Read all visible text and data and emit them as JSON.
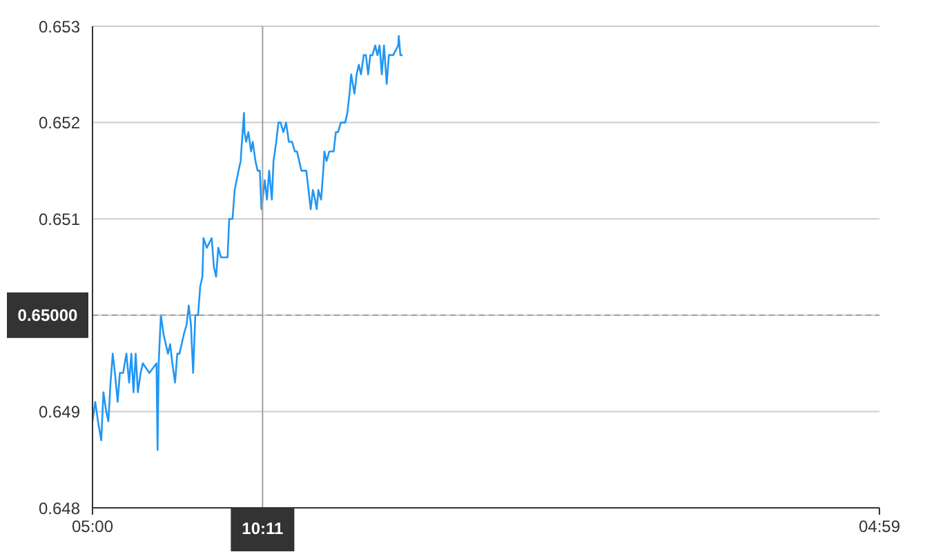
{
  "chart_data": {
    "type": "line",
    "x": [
      "2000-01-01T05:00",
      "2000-01-01T05:05",
      "2000-01-01T05:10",
      "2000-01-01T05:16",
      "2000-01-01T05:20",
      "2000-01-01T05:25",
      "2000-01-01T05:29",
      "2000-01-01T05:33",
      "2000-01-01T05:37",
      "2000-01-01T05:41",
      "2000-01-01T05:46",
      "2000-01-01T05:50",
      "2000-01-01T05:56",
      "2000-01-01T06:02",
      "2000-01-01T06:07",
      "2000-01-01T06:11",
      "2000-01-01T06:15",
      "2000-01-01T06:19",
      "2000-01-01T06:23",
      "2000-01-01T06:28",
      "2000-01-01T06:32",
      "2000-01-01T06:44",
      "2000-01-01T06:57",
      "2000-01-01T06:59",
      "2000-01-01T07:01",
      "2000-01-01T07:05",
      "2000-01-01T07:10",
      "2000-01-01T07:14",
      "2000-01-01T07:18",
      "2000-01-01T07:22",
      "2000-01-01T07:26",
      "2000-01-01T07:31",
      "2000-01-01T07:35",
      "2000-01-01T07:39",
      "2000-01-01T07:43",
      "2000-01-01T07:47",
      "2000-01-01T07:52",
      "2000-01-01T07:56",
      "2000-01-01T08:00",
      "2000-01-01T08:04",
      "2000-01-01T08:08",
      "2000-01-01T08:13",
      "2000-01-01T08:17",
      "2000-01-01T08:21",
      "2000-01-01T08:23",
      "2000-01-01T08:29",
      "2000-01-01T08:38",
      "2000-01-01T08:42",
      "2000-01-01T08:46",
      "2000-01-01T08:50",
      "2000-01-01T08:55",
      "2000-01-01T09:07",
      "2000-01-01T09:10",
      "2000-01-01T09:16",
      "2000-01-01T09:20",
      "2000-01-01T09:27",
      "2000-01-01T09:31",
      "2000-01-01T09:32",
      "2000-01-01T09:37",
      "2000-01-01T09:38",
      "2000-01-01T09:41",
      "2000-01-01T09:45",
      "2000-01-01T09:50",
      "2000-01-01T09:53",
      "2000-01-01T09:58",
      "2000-01-01T10:02",
      "2000-01-01T10:06",
      "2000-01-01T10:09",
      "2000-01-01T10:15",
      "2000-01-01T10:19",
      "2000-01-01T10:23",
      "2000-01-01T10:28",
      "2000-01-01T10:31",
      "2000-01-01T10:36",
      "2000-01-01T10:40",
      "2000-01-01T10:44",
      "2000-01-01T10:49",
      "2000-01-01T10:54",
      "2000-01-01T10:59",
      "2000-01-01T11:05",
      "2000-01-01T11:10",
      "2000-01-01T11:14",
      "2000-01-01T11:18",
      "2000-01-01T11:22",
      "2000-01-01T11:31",
      "2000-01-01T11:33",
      "2000-01-01T11:37",
      "2000-01-01T11:39",
      "2000-01-01T11:43",
      "2000-01-01T11:47",
      "2000-01-01T11:50",
      "2000-01-01T11:53",
      "2000-01-01T11:58",
      "2000-01-01T12:02",
      "2000-01-01T12:04",
      "2000-01-01T12:08",
      "2000-01-01T12:13",
      "2000-01-01T12:17",
      "2000-01-01T12:21",
      "2000-01-01T12:25",
      "2000-01-01T12:29",
      "2000-01-01T12:34",
      "2000-01-01T12:38",
      "2000-01-01T12:42",
      "2000-01-01T12:46",
      "2000-01-01T12:50",
      "2000-01-01T12:53",
      "2000-01-01T12:59",
      "2000-01-01T13:03",
      "2000-01-01T13:07",
      "2000-01-01T13:11",
      "2000-01-01T13:16",
      "2000-01-01T13:20",
      "2000-01-01T13:24",
      "2000-01-01T13:28",
      "2000-01-01T13:32",
      "2000-01-01T13:37",
      "2000-01-01T13:41",
      "2000-01-01T13:45",
      "2000-01-01T13:49",
      "2000-01-01T13:53",
      "2000-01-01T13:58",
      "2000-01-01T14:02",
      "2000-01-01T14:06",
      "2000-01-01T14:10",
      "2000-01-01T14:19",
      "2000-01-01T14:20",
      "2000-01-01T14:23",
      "2000-01-01T14:27"
    ],
    "series": [
      {
        "color": "#2196f3",
        "values": [
          0.6489,
          0.6491,
          0.6489,
          0.6487,
          0.6492,
          0.649,
          0.6489,
          0.6493,
          0.6496,
          0.6494,
          0.6491,
          0.6494,
          0.6494,
          0.6496,
          0.6493,
          0.6496,
          0.6492,
          0.6496,
          0.6492,
          0.6494,
          0.6495,
          0.6494,
          0.6495,
          0.6486,
          0.6495,
          0.65,
          0.6498,
          0.6497,
          0.6496,
          0.6497,
          0.6495,
          0.6493,
          0.6496,
          0.6496,
          0.6497,
          0.6498,
          0.6499,
          0.6501,
          0.6499,
          0.6494,
          0.65,
          0.65,
          0.6503,
          0.6504,
          0.6508,
          0.6507,
          0.6508,
          0.6505,
          0.6504,
          0.6507,
          0.6506,
          0.6506,
          0.651,
          0.651,
          0.6513,
          0.6515,
          0.6516,
          0.6517,
          0.6521,
          0.6519,
          0.6518,
          0.6519,
          0.6517,
          0.6518,
          0.6516,
          0.6515,
          0.6515,
          0.6511,
          0.6514,
          0.6512,
          0.6515,
          0.6512,
          0.6516,
          0.6518,
          0.652,
          0.652,
          0.6519,
          0.652,
          0.6518,
          0.6518,
          0.6517,
          0.6517,
          0.6516,
          0.6515,
          0.6515,
          0.6514,
          0.6512,
          0.6511,
          0.6513,
          0.6512,
          0.6511,
          0.6513,
          0.6512,
          0.6515,
          0.6517,
          0.6516,
          0.6517,
          0.6517,
          0.6517,
          0.6519,
          0.6519,
          0.652,
          0.652,
          0.652,
          0.6521,
          0.6523,
          0.6525,
          0.6523,
          0.6525,
          0.6526,
          0.6525,
          0.6527,
          0.6527,
          0.6525,
          0.6527,
          0.6527,
          0.6528,
          0.6527,
          0.6528,
          0.6525,
          0.6528,
          0.6524,
          0.6527,
          0.6527,
          0.6527,
          0.6528,
          0.6529,
          0.6527,
          0.6527
        ]
      }
    ],
    "xlim": [
      "2000-01-01T05:00",
      "2000-01-02T04:59"
    ],
    "xticks": [
      {
        "value": "2000-01-01T05:00",
        "label": "05:00"
      },
      {
        "value": "2000-01-02T04:59",
        "label": "04:59"
      }
    ],
    "ylim": [
      0.648,
      0.653
    ],
    "yticks": [
      0.648,
      0.649,
      {
        "value": 0.65,
        "label": null
      },
      0.651,
      0.652,
      0.653
    ],
    "grid": "y",
    "ref_lines": [
      {
        "axis": "x",
        "value": "2000-01-01T10:11",
        "label": "10:11",
        "color": "#a0a0a0",
        "line_style": "solid"
      },
      {
        "axis": "y",
        "value": 0.65,
        "label": "0.65000",
        "color": "#a0a0a0",
        "line_style": "dashed"
      }
    ]
  }
}
